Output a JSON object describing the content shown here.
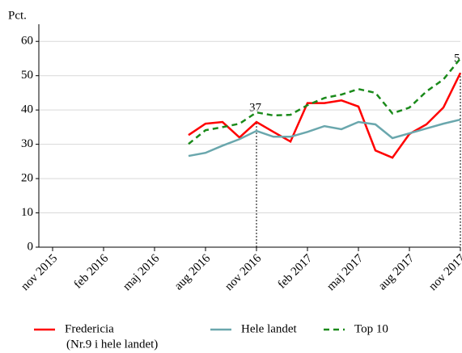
{
  "chart_data": {
    "type": "line",
    "y_label": "Pct.",
    "categories": [
      "nov 2015",
      null,
      null,
      "feb 2016",
      null,
      null,
      "maj 2016",
      null,
      null,
      "aug 2016",
      null,
      null,
      "nov 2016",
      null,
      null,
      "feb 2017",
      null,
      null,
      "maj 2017",
      null,
      null,
      "aug 2017",
      null,
      null,
      "nov 2017"
    ],
    "series": [
      {
        "name": "Fredericia",
        "note": "(Nr.9 i hele landet)",
        "color": "#ff0000",
        "dash": false,
        "values": [
          null,
          null,
          null,
          null,
          null,
          null,
          null,
          null,
          32.7,
          36,
          36.5,
          32,
          36.5,
          33.6,
          30.8,
          42,
          42,
          42.8,
          41,
          28.2,
          26.1,
          33,
          35.8,
          40.7,
          50.8
        ]
      },
      {
        "name": "Hele landet",
        "color": "#6aa7ad",
        "dash": false,
        "values": [
          null,
          null,
          null,
          null,
          null,
          null,
          null,
          null,
          26.6,
          27.5,
          29.6,
          31.5,
          33.9,
          32.2,
          32.2,
          33.6,
          35.3,
          34.4,
          36.5,
          35.8,
          31.8,
          33.2,
          34.6,
          36,
          37.2
        ]
      },
      {
        "name": "Top 10",
        "color": "#1a8a1a",
        "dash": true,
        "values": [
          null,
          null,
          null,
          null,
          null,
          null,
          null,
          null,
          30.1,
          34.1,
          35,
          36,
          39.3,
          38.4,
          38.6,
          41.4,
          43.5,
          44.5,
          46.1,
          45,
          39,
          40.7,
          45.4,
          48.9,
          55
        ]
      }
    ],
    "annotations": [
      "37",
      "5"
    ],
    "ylim": [
      0,
      65
    ],
    "yticks": [
      0,
      10,
      20,
      30,
      40,
      50,
      60
    ],
    "grid": true
  }
}
